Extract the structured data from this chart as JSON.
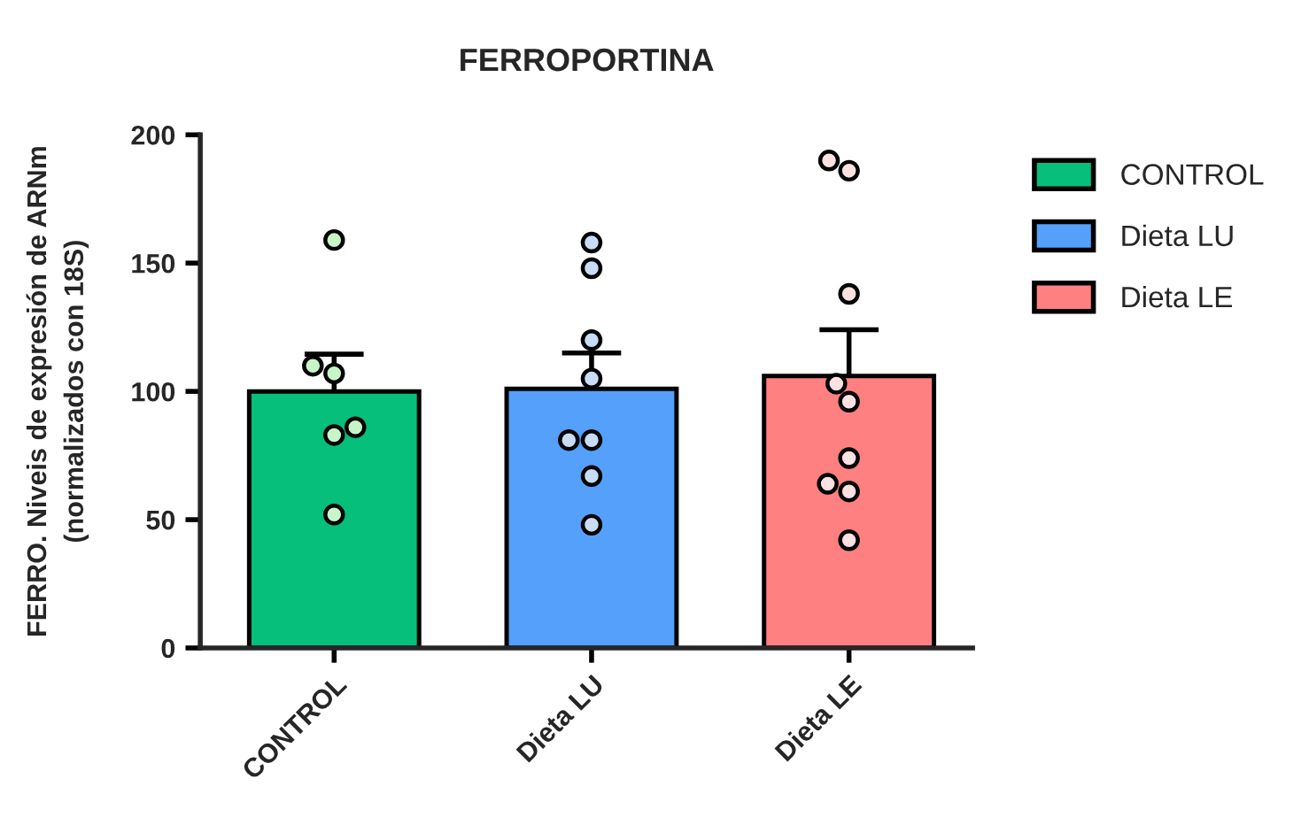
{
  "chart_data": {
    "type": "bar",
    "title": "FERROPORTINA",
    "ylabel": "FERRO. Niveis de expresión de ARNm\n(normalizados con 18S)",
    "categories": [
      "CONTROL",
      "Dieta LU",
      "Dieta LE"
    ],
    "ylim": [
      0,
      200
    ],
    "yticks": [
      0,
      50,
      100,
      150,
      200
    ],
    "legend": "right",
    "series": [
      {
        "name": "CONTROL",
        "color": "#05bf7a",
        "values": [
          100,
          null,
          null
        ],
        "errors": [
          [
            100,
            114.5
          ],
          null,
          null
        ]
      },
      {
        "name": "Dieta LU",
        "color": "#55a0fa",
        "values": [
          null,
          101,
          null
        ],
        "errors": [
          null,
          [
            101,
            115
          ],
          null
        ]
      },
      {
        "name": "Dieta LE",
        "color": "#ff8080",
        "values": [
          null,
          null,
          106
        ],
        "errors": [
          null,
          null,
          [
            106,
            124
          ]
        ]
      },
      {
        "type": "scatter",
        "color": "#c8f5c8",
        "marker": "circle",
        "x": [
          "CONTROL",
          "CONTROL",
          "CONTROL",
          "CONTROL",
          "CONTROL",
          "CONTROL"
        ],
        "values": [
          159,
          107,
          110,
          86,
          83,
          52
        ]
      },
      {
        "type": "scatter",
        "color": "#c8dcf5",
        "marker": "circle",
        "x": [
          "Dieta LU",
          "Dieta LU",
          "Dieta LU",
          "Dieta LU",
          "Dieta LU",
          "Dieta LU",
          "Dieta LU",
          "Dieta LU"
        ],
        "values": [
          158,
          148,
          120,
          105,
          81,
          81,
          67,
          48
        ]
      },
      {
        "type": "scatter",
        "color": "#fde0e0",
        "marker": "circle",
        "x": [
          "Dieta LE",
          "Dieta LE",
          "Dieta LE",
          "Dieta LE",
          "Dieta LE",
          "Dieta LE",
          "Dieta LE",
          "Dieta LE",
          "Dieta LE"
        ],
        "values": [
          190,
          186,
          138,
          103,
          96,
          74,
          64,
          61,
          42
        ]
      }
    ]
  }
}
